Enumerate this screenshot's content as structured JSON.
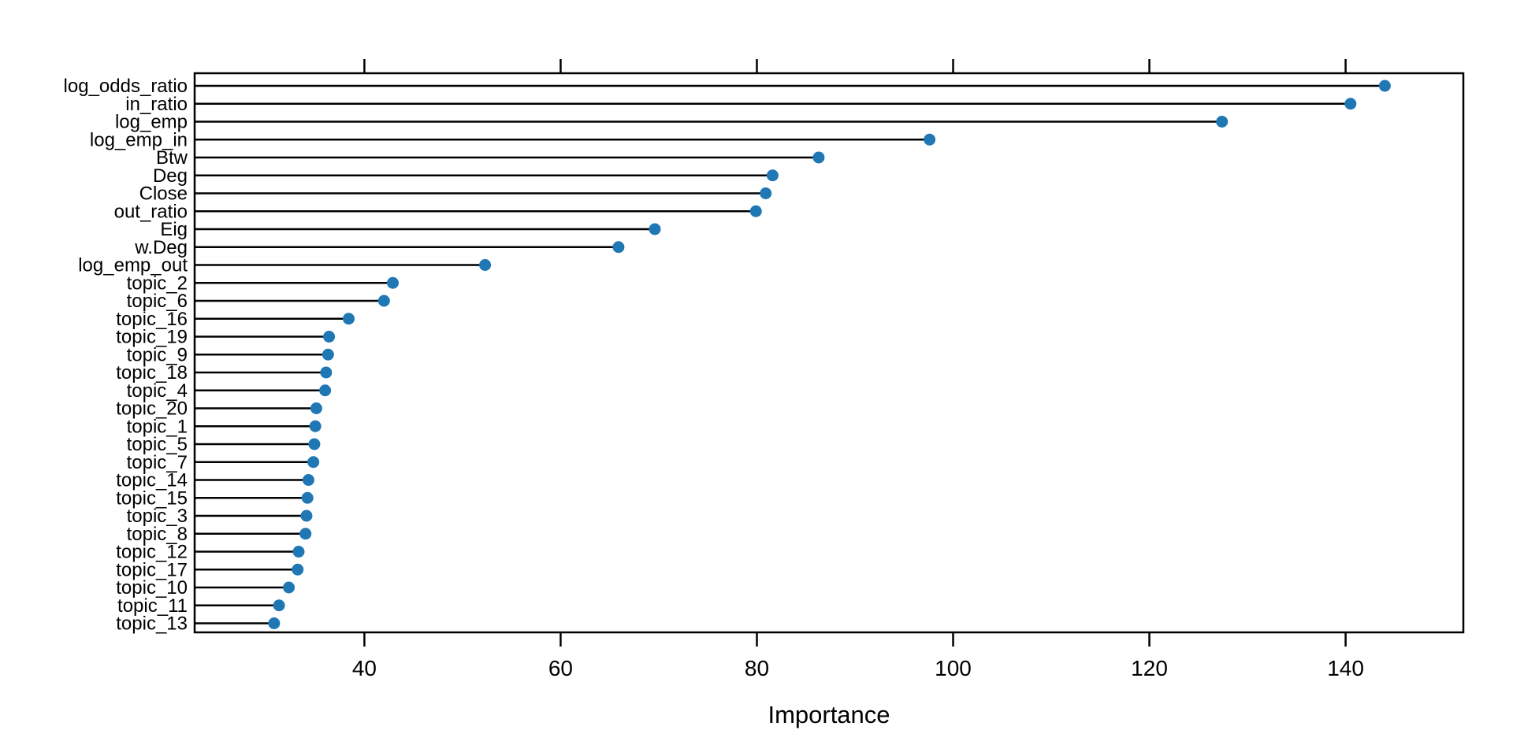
{
  "figure": {
    "background": "#ffffff"
  },
  "chart_data": {
    "type": "scatter",
    "variant": "cleveland-dot-plot-lollipop",
    "orientation": "horizontal",
    "title": "",
    "xlabel": "Importance",
    "ylabel": "",
    "xlim": [
      22.7,
      152.0
    ],
    "x_ticks": [
      40,
      60,
      80,
      100,
      120,
      140
    ],
    "ticks_on_top_and_bottom": true,
    "grid": false,
    "legend": false,
    "point_color": "#1f77b4",
    "stem_color": "#000000",
    "frame_color": "#000000",
    "categories": [
      "log_odds_ratio",
      "in_ratio",
      "log_emp",
      "log_emp_in",
      "Btw",
      "Deg",
      "Close",
      "out_ratio",
      "Eig",
      "w.Deg",
      "log_emp_out",
      "topic_2",
      "topic_6",
      "topic_16",
      "topic_19",
      "topic_9",
      "topic_18",
      "topic_4",
      "topic_20",
      "topic_1",
      "topic_5",
      "topic_7",
      "topic_14",
      "topic_15",
      "topic_3",
      "topic_8",
      "topic_12",
      "topic_17",
      "topic_10",
      "topic_11",
      "topic_13"
    ],
    "values": [
      144.0,
      140.5,
      127.4,
      97.6,
      86.3,
      81.6,
      80.9,
      79.9,
      69.6,
      65.9,
      52.3,
      42.9,
      42.0,
      38.4,
      36.4,
      36.3,
      36.1,
      36.0,
      35.1,
      35.0,
      34.9,
      34.8,
      34.3,
      34.2,
      34.1,
      34.0,
      33.3,
      33.2,
      32.3,
      31.3,
      30.8
    ]
  }
}
